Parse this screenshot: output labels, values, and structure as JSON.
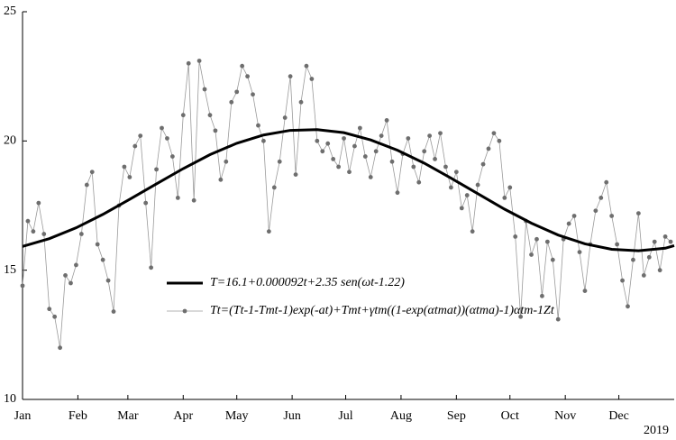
{
  "chart_data": {
    "type": "line",
    "xlim": [
      0,
      365
    ],
    "ylim": [
      10,
      25
    ],
    "xticks": [
      {
        "value": 0,
        "label": "Jan"
      },
      {
        "value": 31,
        "label": "Feb"
      },
      {
        "value": 59,
        "label": "Mar"
      },
      {
        "value": 90,
        "label": "Apr"
      },
      {
        "value": 120,
        "label": "May"
      },
      {
        "value": 151,
        "label": "Jun"
      },
      {
        "value": 181,
        "label": "Jul"
      },
      {
        "value": 212,
        "label": "Aug"
      },
      {
        "value": 243,
        "label": "Sep"
      },
      {
        "value": 273,
        "label": "Oct"
      },
      {
        "value": 304,
        "label": "Nov"
      },
      {
        "value": 334,
        "label": "Dec"
      }
    ],
    "yticks": [
      10,
      15,
      20,
      25
    ],
    "x_annotation": "2019",
    "legend": "lower center",
    "series": [
      {
        "name": "T=16.1+0.000092t+2.35 sen(ωt-1.22)",
        "color": "#000000",
        "markers": false,
        "x": [
          0,
          15,
          30,
          45,
          60,
          75,
          90,
          105,
          120,
          135,
          150,
          165,
          180,
          195,
          210,
          225,
          240,
          255,
          270,
          285,
          300,
          315,
          330,
          345,
          360,
          365
        ],
        "values": [
          15.92,
          16.22,
          16.64,
          17.16,
          17.74,
          18.34,
          18.93,
          19.47,
          19.91,
          20.23,
          20.41,
          20.44,
          20.32,
          20.04,
          19.64,
          19.14,
          18.56,
          17.96,
          17.36,
          16.82,
          16.36,
          16.02,
          15.81,
          15.75,
          15.85,
          15.95
        ]
      },
      {
        "name": "Tt=(Tt-1-Tmt-1)exp(-at)+Tmt+γtm((1-exp(αtmat))(αtma)-1)αtm-1Zt",
        "color": "#6e6e6e",
        "markers": true,
        "x": [
          0,
          3,
          6,
          9,
          12,
          15,
          18,
          21,
          24,
          27,
          30,
          33,
          36,
          39,
          42,
          45,
          48,
          51,
          54,
          57,
          60,
          63,
          66,
          69,
          72,
          75,
          78,
          81,
          84,
          87,
          90,
          93,
          96,
          99,
          102,
          105,
          108,
          111,
          114,
          117,
          120,
          123,
          126,
          129,
          132,
          135,
          138,
          141,
          144,
          147,
          150,
          153,
          156,
          159,
          162,
          165,
          168,
          171,
          174,
          177,
          180,
          183,
          186,
          189,
          192,
          195,
          198,
          201,
          204,
          207,
          210,
          213,
          216,
          219,
          222,
          225,
          228,
          231,
          234,
          237,
          240,
          243,
          246,
          249,
          252,
          255,
          258,
          261,
          264,
          267,
          270,
          273,
          276,
          279,
          282,
          285,
          288,
          291,
          294,
          297,
          300,
          303,
          306,
          309,
          312,
          315,
          318,
          321,
          324,
          327,
          330,
          333,
          336,
          339,
          342,
          345,
          348,
          351,
          354,
          357,
          360,
          363
        ],
        "values": [
          14.4,
          16.9,
          16.5,
          17.6,
          16.4,
          13.5,
          13.2,
          12.0,
          14.8,
          14.5,
          15.2,
          16.4,
          18.3,
          18.8,
          16.0,
          15.4,
          14.6,
          13.4,
          17.5,
          19.0,
          18.6,
          19.8,
          20.2,
          17.6,
          15.1,
          18.9,
          20.5,
          20.1,
          19.4,
          17.8,
          21.0,
          23.0,
          17.7,
          23.1,
          22.0,
          21.0,
          20.4,
          18.5,
          19.2,
          21.5,
          21.9,
          22.9,
          22.5,
          21.8,
          20.6,
          20.0,
          16.5,
          18.2,
          19.2,
          20.9,
          22.5,
          18.7,
          21.5,
          22.9,
          22.4,
          20.0,
          19.6,
          19.9,
          19.3,
          19.0,
          20.1,
          18.8,
          19.8,
          20.5,
          19.4,
          18.6,
          19.6,
          20.2,
          20.8,
          19.2,
          18.0,
          19.5,
          20.1,
          19.0,
          18.4,
          19.6,
          20.2,
          19.3,
          20.3,
          19.0,
          18.2,
          18.8,
          17.4,
          17.9,
          16.5,
          18.3,
          19.1,
          19.7,
          20.3,
          20.0,
          17.8,
          18.2,
          16.3,
          13.2,
          16.9,
          15.6,
          16.2,
          14.0,
          16.1,
          15.4,
          13.1,
          16.2,
          16.8,
          17.1,
          15.7,
          14.2,
          16.0,
          17.3,
          17.8,
          18.4,
          17.1,
          16.0,
          14.6,
          13.6,
          15.4,
          17.2,
          14.8,
          15.5,
          16.1,
          15.0,
          16.3,
          16.1
        ]
      }
    ]
  }
}
